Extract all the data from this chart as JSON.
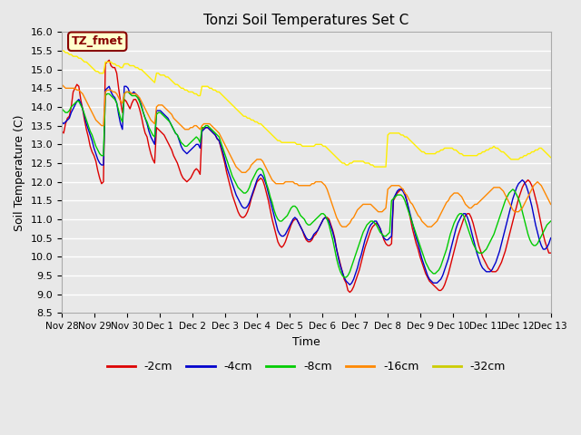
{
  "title": "Tonzi Soil Temperatures Set C",
  "xlabel": "Time",
  "ylabel": "Soil Temperature (C)",
  "ylim": [
    8.5,
    16.0
  ],
  "xtick_labels": [
    "Nov 28",
    "Nov 29",
    "Nov 30",
    "Dec 1",
    "Dec 2",
    "Dec 3",
    "Dec 4",
    "Dec 5",
    "Dec 6",
    "Dec 7",
    "Dec 8",
    "Dec 9",
    "Dec 10",
    "Dec 11",
    "Dec 12",
    "Dec 13"
  ],
  "legend_labels": [
    "-2cm",
    "-4cm",
    "-8cm",
    "-16cm",
    "-32cm"
  ],
  "line_colors": [
    "#dd0000",
    "#0000cc",
    "#00cc00",
    "#ff8800",
    "#ffee00"
  ],
  "legend_colors": [
    "#dd0000",
    "#0000cc",
    "#00cc00",
    "#ff8800",
    "#cccc00"
  ],
  "annotation_text": "TZ_fmet",
  "annotation_color": "#880000",
  "annotation_bg": "#ffffcc",
  "background_color": "#e8e8e8",
  "series_neg2cm": [
    13.35,
    13.3,
    13.55,
    13.7,
    13.75,
    14.0,
    14.4,
    14.5,
    14.6,
    14.55,
    14.2,
    13.95,
    13.65,
    13.4,
    13.2,
    12.95,
    12.8,
    12.7,
    12.55,
    12.3,
    12.1,
    11.95,
    12.0,
    15.15,
    15.2,
    15.25,
    15.1,
    15.05,
    15.05,
    14.9,
    14.5,
    14.15,
    13.85,
    14.2,
    14.15,
    14.05,
    13.95,
    14.1,
    14.2,
    14.2,
    14.1,
    13.95,
    13.75,
    13.5,
    13.3,
    13.2,
    12.95,
    12.75,
    12.6,
    12.5,
    13.45,
    13.4,
    13.35,
    13.3,
    13.25,
    13.15,
    13.05,
    12.95,
    12.85,
    12.7,
    12.6,
    12.5,
    12.35,
    12.2,
    12.1,
    12.05,
    12.0,
    12.05,
    12.1,
    12.2,
    12.3,
    12.35,
    12.3,
    12.2,
    13.4,
    13.45,
    13.45,
    13.45,
    13.4,
    13.35,
    13.3,
    13.25,
    13.15,
    13.1,
    12.9,
    12.7,
    12.5,
    12.25,
    12.05,
    11.85,
    11.65,
    11.5,
    11.35,
    11.2,
    11.1,
    11.05,
    11.05,
    11.1,
    11.2,
    11.35,
    11.55,
    11.7,
    11.85,
    12.0,
    12.05,
    12.1,
    12.05,
    11.9,
    11.7,
    11.5,
    11.25,
    11.0,
    10.8,
    10.6,
    10.4,
    10.3,
    10.25,
    10.3,
    10.4,
    10.55,
    10.7,
    10.85,
    10.95,
    11.0,
    11.0,
    10.9,
    10.8,
    10.7,
    10.55,
    10.45,
    10.4,
    10.4,
    10.45,
    10.55,
    10.6,
    10.7,
    10.8,
    10.9,
    11.0,
    11.05,
    11.05,
    11.0,
    10.85,
    10.7,
    10.5,
    10.2,
    10.0,
    9.8,
    9.6,
    9.4,
    9.3,
    9.1,
    9.05,
    9.1,
    9.2,
    9.35,
    9.5,
    9.65,
    9.85,
    10.05,
    10.25,
    10.4,
    10.55,
    10.7,
    10.8,
    10.85,
    10.9,
    10.85,
    10.75,
    10.6,
    10.45,
    10.35,
    10.3,
    10.3,
    10.35,
    11.5,
    11.6,
    11.7,
    11.75,
    11.8,
    11.8,
    11.7,
    11.5,
    11.25,
    11.0,
    10.75,
    10.55,
    10.35,
    10.2,
    10.0,
    9.85,
    9.7,
    9.55,
    9.45,
    9.35,
    9.3,
    9.25,
    9.2,
    9.15,
    9.1,
    9.1,
    9.15,
    9.25,
    9.4,
    9.55,
    9.75,
    9.95,
    10.15,
    10.35,
    10.55,
    10.7,
    10.85,
    11.0,
    11.1,
    11.15,
    11.15,
    11.05,
    10.9,
    10.7,
    10.5,
    10.3,
    10.15,
    10.0,
    9.9,
    9.8,
    9.7,
    9.65,
    9.6,
    9.6,
    9.6,
    9.65,
    9.75,
    9.85,
    10.0,
    10.15,
    10.35,
    10.55,
    10.75,
    10.95,
    11.15,
    11.35,
    11.55,
    11.7,
    11.85,
    11.95,
    12.0,
    12.05,
    12.0,
    11.9,
    11.75,
    11.55,
    11.35,
    11.1,
    10.85,
    10.6,
    10.4,
    10.25,
    10.1,
    10.1,
    10.15,
    10.25,
    10.4,
    10.6,
    10.75,
    10.95,
    11.1,
    11.2,
    11.3,
    11.35,
    11.3,
    11.2,
    11.05,
    10.85,
    10.65,
    10.45,
    10.3
  ],
  "series_neg4cm": [
    13.6,
    13.55,
    13.6,
    13.65,
    13.7,
    13.85,
    13.95,
    14.05,
    14.15,
    14.2,
    14.1,
    13.95,
    13.75,
    13.55,
    13.4,
    13.25,
    13.1,
    12.9,
    12.75,
    12.6,
    12.5,
    12.45,
    12.45,
    14.45,
    14.5,
    14.55,
    14.4,
    14.3,
    14.25,
    14.1,
    13.8,
    13.55,
    13.4,
    14.55,
    14.55,
    14.5,
    14.35,
    14.35,
    14.4,
    14.35,
    14.3,
    14.2,
    14.05,
    13.85,
    13.7,
    13.55,
    13.35,
    13.2,
    13.1,
    13.0,
    13.9,
    13.9,
    13.9,
    13.85,
    13.8,
    13.75,
    13.7,
    13.6,
    13.5,
    13.4,
    13.3,
    13.25,
    13.1,
    12.95,
    12.85,
    12.8,
    12.75,
    12.8,
    12.85,
    12.9,
    12.95,
    13.0,
    13.0,
    12.9,
    13.35,
    13.4,
    13.45,
    13.45,
    13.4,
    13.35,
    13.3,
    13.25,
    13.15,
    13.1,
    12.95,
    12.8,
    12.6,
    12.4,
    12.25,
    12.1,
    11.95,
    11.8,
    11.65,
    11.55,
    11.45,
    11.35,
    11.3,
    11.3,
    11.35,
    11.45,
    11.6,
    11.75,
    11.9,
    12.05,
    12.15,
    12.2,
    12.15,
    12.05,
    11.9,
    11.7,
    11.5,
    11.3,
    11.1,
    10.9,
    10.7,
    10.6,
    10.55,
    10.55,
    10.6,
    10.7,
    10.8,
    10.9,
    11.0,
    11.05,
    11.0,
    10.9,
    10.8,
    10.7,
    10.6,
    10.5,
    10.45,
    10.45,
    10.5,
    10.6,
    10.65,
    10.7,
    10.8,
    10.9,
    11.0,
    11.05,
    11.0,
    10.95,
    10.8,
    10.65,
    10.45,
    10.2,
    9.95,
    9.75,
    9.6,
    9.45,
    9.35,
    9.3,
    9.25,
    9.3,
    9.4,
    9.55,
    9.7,
    9.9,
    10.05,
    10.25,
    10.45,
    10.6,
    10.75,
    10.85,
    10.9,
    10.95,
    10.95,
    10.85,
    10.75,
    10.6,
    10.5,
    10.45,
    10.45,
    10.5,
    10.55,
    11.55,
    11.65,
    11.75,
    11.8,
    11.8,
    11.75,
    11.65,
    11.5,
    11.3,
    11.1,
    10.9,
    10.7,
    10.5,
    10.35,
    10.15,
    9.95,
    9.8,
    9.65,
    9.5,
    9.4,
    9.35,
    9.3,
    9.3,
    9.3,
    9.35,
    9.4,
    9.5,
    9.65,
    9.8,
    9.95,
    10.15,
    10.35,
    10.55,
    10.75,
    10.9,
    11.0,
    11.1,
    11.15,
    11.15,
    11.05,
    10.9,
    10.7,
    10.5,
    10.3,
    10.1,
    9.95,
    9.8,
    9.7,
    9.65,
    9.6,
    9.6,
    9.6,
    9.65,
    9.75,
    9.85,
    10.0,
    10.15,
    10.35,
    10.55,
    10.75,
    10.95,
    11.15,
    11.35,
    11.55,
    11.7,
    11.85,
    11.95,
    12.0,
    12.05,
    12.0,
    11.9,
    11.75,
    11.55,
    11.35,
    11.1,
    10.85,
    10.65,
    10.45,
    10.3,
    10.2,
    10.2,
    10.25,
    10.35,
    10.5,
    10.65,
    10.8,
    10.95,
    11.05,
    11.15,
    11.2,
    11.2,
    11.1,
    11.0,
    10.85,
    10.7,
    10.55,
    10.4,
    10.3
  ],
  "series_neg8cm": [
    13.95,
    13.9,
    13.85,
    13.85,
    13.9,
    14.0,
    14.05,
    14.1,
    14.15,
    14.15,
    14.05,
    13.95,
    13.8,
    13.65,
    13.5,
    13.35,
    13.25,
    13.1,
    12.95,
    12.85,
    12.75,
    12.7,
    12.7,
    14.3,
    14.35,
    14.35,
    14.3,
    14.25,
    14.2,
    14.1,
    13.9,
    13.7,
    13.6,
    14.35,
    14.4,
    14.4,
    14.35,
    14.3,
    14.3,
    14.3,
    14.25,
    14.15,
    14.0,
    13.85,
    13.7,
    13.6,
    13.45,
    13.35,
    13.25,
    13.2,
    13.8,
    13.85,
    13.85,
    13.8,
    13.75,
    13.7,
    13.65,
    13.6,
    13.5,
    13.4,
    13.3,
    13.25,
    13.15,
    13.05,
    13.0,
    12.95,
    12.95,
    13.0,
    13.05,
    13.1,
    13.15,
    13.2,
    13.15,
    13.05,
    13.45,
    13.45,
    13.5,
    13.5,
    13.45,
    13.4,
    13.35,
    13.3,
    13.25,
    13.2,
    13.05,
    12.9,
    12.75,
    12.6,
    12.45,
    12.3,
    12.15,
    12.05,
    11.95,
    11.85,
    11.8,
    11.75,
    11.7,
    11.7,
    11.75,
    11.85,
    12.0,
    12.1,
    12.2,
    12.3,
    12.35,
    12.35,
    12.3,
    12.15,
    11.95,
    11.8,
    11.6,
    11.45,
    11.25,
    11.1,
    11.0,
    10.95,
    10.95,
    11.0,
    11.05,
    11.1,
    11.2,
    11.3,
    11.35,
    11.35,
    11.3,
    11.2,
    11.1,
    11.05,
    11.0,
    10.9,
    10.85,
    10.85,
    10.9,
    10.95,
    11.0,
    11.05,
    11.1,
    11.15,
    11.15,
    11.1,
    11.0,
    10.85,
    10.65,
    10.45,
    10.2,
    9.95,
    9.75,
    9.6,
    9.5,
    9.45,
    9.45,
    9.5,
    9.6,
    9.75,
    9.9,
    10.05,
    10.2,
    10.35,
    10.5,
    10.65,
    10.75,
    10.85,
    10.9,
    10.95,
    10.95,
    10.9,
    10.85,
    10.75,
    10.65,
    10.6,
    10.55,
    10.55,
    10.6,
    10.65,
    11.5,
    11.55,
    11.6,
    11.65,
    11.65,
    11.65,
    11.6,
    11.5,
    11.35,
    11.2,
    11.05,
    10.9,
    10.75,
    10.6,
    10.45,
    10.3,
    10.15,
    10.0,
    9.85,
    9.75,
    9.65,
    9.6,
    9.55,
    9.55,
    9.6,
    9.65,
    9.75,
    9.9,
    10.05,
    10.2,
    10.4,
    10.6,
    10.75,
    10.9,
    11.0,
    11.1,
    11.15,
    11.15,
    11.1,
    10.95,
    10.8,
    10.65,
    10.5,
    10.35,
    10.25,
    10.15,
    10.1,
    10.1,
    10.1,
    10.15,
    10.2,
    10.3,
    10.4,
    10.5,
    10.6,
    10.75,
    10.9,
    11.05,
    11.2,
    11.35,
    11.5,
    11.6,
    11.7,
    11.75,
    11.8,
    11.75,
    11.65,
    11.55,
    11.4,
    11.2,
    11.0,
    10.8,
    10.6,
    10.45,
    10.35,
    10.3,
    10.3,
    10.35,
    10.45,
    10.55,
    10.65,
    10.75,
    10.85,
    10.9,
    10.95,
    10.95,
    10.9,
    10.8,
    10.65,
    10.5,
    10.4
  ],
  "series_neg16cm": [
    14.6,
    14.55,
    14.5,
    14.5,
    14.5,
    14.5,
    14.5,
    14.5,
    14.45,
    14.45,
    14.4,
    14.35,
    14.25,
    14.15,
    14.05,
    13.95,
    13.85,
    13.75,
    13.65,
    13.6,
    13.55,
    13.5,
    13.5,
    14.4,
    14.45,
    14.45,
    14.45,
    14.4,
    14.4,
    14.35,
    14.25,
    14.15,
    14.1,
    14.35,
    14.4,
    14.4,
    14.4,
    14.35,
    14.35,
    14.35,
    14.3,
    14.25,
    14.15,
    14.05,
    13.95,
    13.85,
    13.75,
    13.65,
    13.6,
    13.55,
    14.0,
    14.05,
    14.05,
    14.05,
    14.0,
    13.95,
    13.9,
    13.85,
    13.8,
    13.7,
    13.65,
    13.6,
    13.55,
    13.5,
    13.45,
    13.4,
    13.4,
    13.4,
    13.45,
    13.45,
    13.5,
    13.5,
    13.45,
    13.4,
    13.5,
    13.55,
    13.55,
    13.55,
    13.55,
    13.5,
    13.45,
    13.4,
    13.35,
    13.3,
    13.2,
    13.1,
    13.0,
    12.9,
    12.8,
    12.7,
    12.6,
    12.5,
    12.4,
    12.35,
    12.3,
    12.25,
    12.25,
    12.25,
    12.3,
    12.35,
    12.45,
    12.5,
    12.55,
    12.6,
    12.6,
    12.6,
    12.55,
    12.45,
    12.35,
    12.25,
    12.15,
    12.05,
    12.0,
    11.95,
    11.95,
    11.95,
    11.95,
    11.95,
    12.0,
    12.0,
    12.0,
    12.0,
    12.0,
    11.95,
    11.95,
    11.9,
    11.9,
    11.9,
    11.9,
    11.9,
    11.9,
    11.9,
    11.95,
    11.95,
    12.0,
    12.0,
    12.0,
    12.0,
    11.95,
    11.9,
    11.8,
    11.65,
    11.5,
    11.35,
    11.2,
    11.05,
    10.95,
    10.85,
    10.8,
    10.8,
    10.8,
    10.85,
    10.9,
    11.0,
    11.05,
    11.15,
    11.25,
    11.3,
    11.35,
    11.4,
    11.4,
    11.4,
    11.4,
    11.4,
    11.35,
    11.3,
    11.25,
    11.2,
    11.2,
    11.2,
    11.25,
    11.3,
    11.8,
    11.85,
    11.9,
    11.9,
    11.9,
    11.9,
    11.9,
    11.85,
    11.8,
    11.7,
    11.65,
    11.55,
    11.45,
    11.4,
    11.3,
    11.2,
    11.1,
    11.05,
    10.95,
    10.9,
    10.85,
    10.8,
    10.8,
    10.8,
    10.85,
    10.9,
    10.95,
    11.05,
    11.15,
    11.25,
    11.35,
    11.45,
    11.5,
    11.6,
    11.65,
    11.7,
    11.7,
    11.7,
    11.65,
    11.6,
    11.5,
    11.4,
    11.35,
    11.3,
    11.3,
    11.35,
    11.4,
    11.4,
    11.45,
    11.5,
    11.55,
    11.6,
    11.65,
    11.7,
    11.75,
    11.8,
    11.85,
    11.85,
    11.85,
    11.85,
    11.8,
    11.75,
    11.65,
    11.55,
    11.45,
    11.35,
    11.25,
    11.2,
    11.2,
    11.2,
    11.25,
    11.3,
    11.4,
    11.5,
    11.6,
    11.7,
    11.8,
    11.9,
    11.95,
    12.0,
    11.95,
    11.9,
    11.8,
    11.7,
    11.6,
    11.5,
    11.4
  ],
  "series_neg32cm": [
    15.5,
    15.5,
    15.45,
    15.45,
    15.4,
    15.4,
    15.35,
    15.35,
    15.35,
    15.3,
    15.3,
    15.25,
    15.2,
    15.2,
    15.15,
    15.1,
    15.05,
    15.0,
    14.95,
    14.95,
    14.9,
    14.9,
    14.9,
    15.2,
    15.2,
    15.2,
    15.2,
    15.15,
    15.15,
    15.1,
    15.1,
    15.05,
    15.05,
    15.15,
    15.15,
    15.15,
    15.1,
    15.1,
    15.1,
    15.05,
    15.05,
    15.0,
    15.0,
    14.95,
    14.9,
    14.85,
    14.8,
    14.75,
    14.7,
    14.65,
    14.9,
    14.9,
    14.85,
    14.85,
    14.85,
    14.8,
    14.8,
    14.75,
    14.7,
    14.65,
    14.6,
    14.6,
    14.55,
    14.5,
    14.5,
    14.45,
    14.45,
    14.4,
    14.4,
    14.4,
    14.35,
    14.35,
    14.3,
    14.3,
    14.55,
    14.55,
    14.55,
    14.55,
    14.5,
    14.5,
    14.45,
    14.45,
    14.4,
    14.4,
    14.35,
    14.3,
    14.25,
    14.2,
    14.15,
    14.1,
    14.05,
    14.0,
    13.95,
    13.9,
    13.85,
    13.8,
    13.75,
    13.75,
    13.7,
    13.7,
    13.65,
    13.65,
    13.6,
    13.6,
    13.55,
    13.55,
    13.5,
    13.45,
    13.4,
    13.35,
    13.3,
    13.25,
    13.2,
    13.15,
    13.1,
    13.1,
    13.05,
    13.05,
    13.05,
    13.05,
    13.05,
    13.05,
    13.05,
    13.05,
    13.0,
    13.0,
    13.0,
    12.95,
    12.95,
    12.95,
    12.95,
    12.95,
    12.95,
    12.95,
    13.0,
    13.0,
    13.0,
    13.0,
    12.95,
    12.95,
    12.9,
    12.85,
    12.8,
    12.75,
    12.7,
    12.65,
    12.6,
    12.55,
    12.5,
    12.5,
    12.45,
    12.45,
    12.5,
    12.5,
    12.55,
    12.55,
    12.55,
    12.55,
    12.55,
    12.55,
    12.5,
    12.5,
    12.5,
    12.45,
    12.45,
    12.4,
    12.4,
    12.4,
    12.4,
    12.4,
    12.4,
    12.4,
    13.25,
    13.3,
    13.3,
    13.3,
    13.3,
    13.3,
    13.3,
    13.25,
    13.25,
    13.2,
    13.2,
    13.15,
    13.1,
    13.05,
    13.0,
    12.95,
    12.9,
    12.85,
    12.8,
    12.8,
    12.75,
    12.75,
    12.75,
    12.75,
    12.75,
    12.75,
    12.8,
    12.8,
    12.85,
    12.85,
    12.9,
    12.9,
    12.9,
    12.9,
    12.9,
    12.85,
    12.85,
    12.8,
    12.75,
    12.75,
    12.7,
    12.7,
    12.7,
    12.7,
    12.7,
    12.7,
    12.7,
    12.7,
    12.75,
    12.75,
    12.8,
    12.8,
    12.85,
    12.85,
    12.9,
    12.9,
    12.95,
    12.9,
    12.9,
    12.85,
    12.8,
    12.8,
    12.75,
    12.7,
    12.65,
    12.6,
    12.6,
    12.6,
    12.6,
    12.6,
    12.65,
    12.65,
    12.7,
    12.7,
    12.75,
    12.75,
    12.8,
    12.8,
    12.85,
    12.85,
    12.9,
    12.9,
    12.85,
    12.8,
    12.75,
    12.7,
    12.65,
    12.6
  ]
}
